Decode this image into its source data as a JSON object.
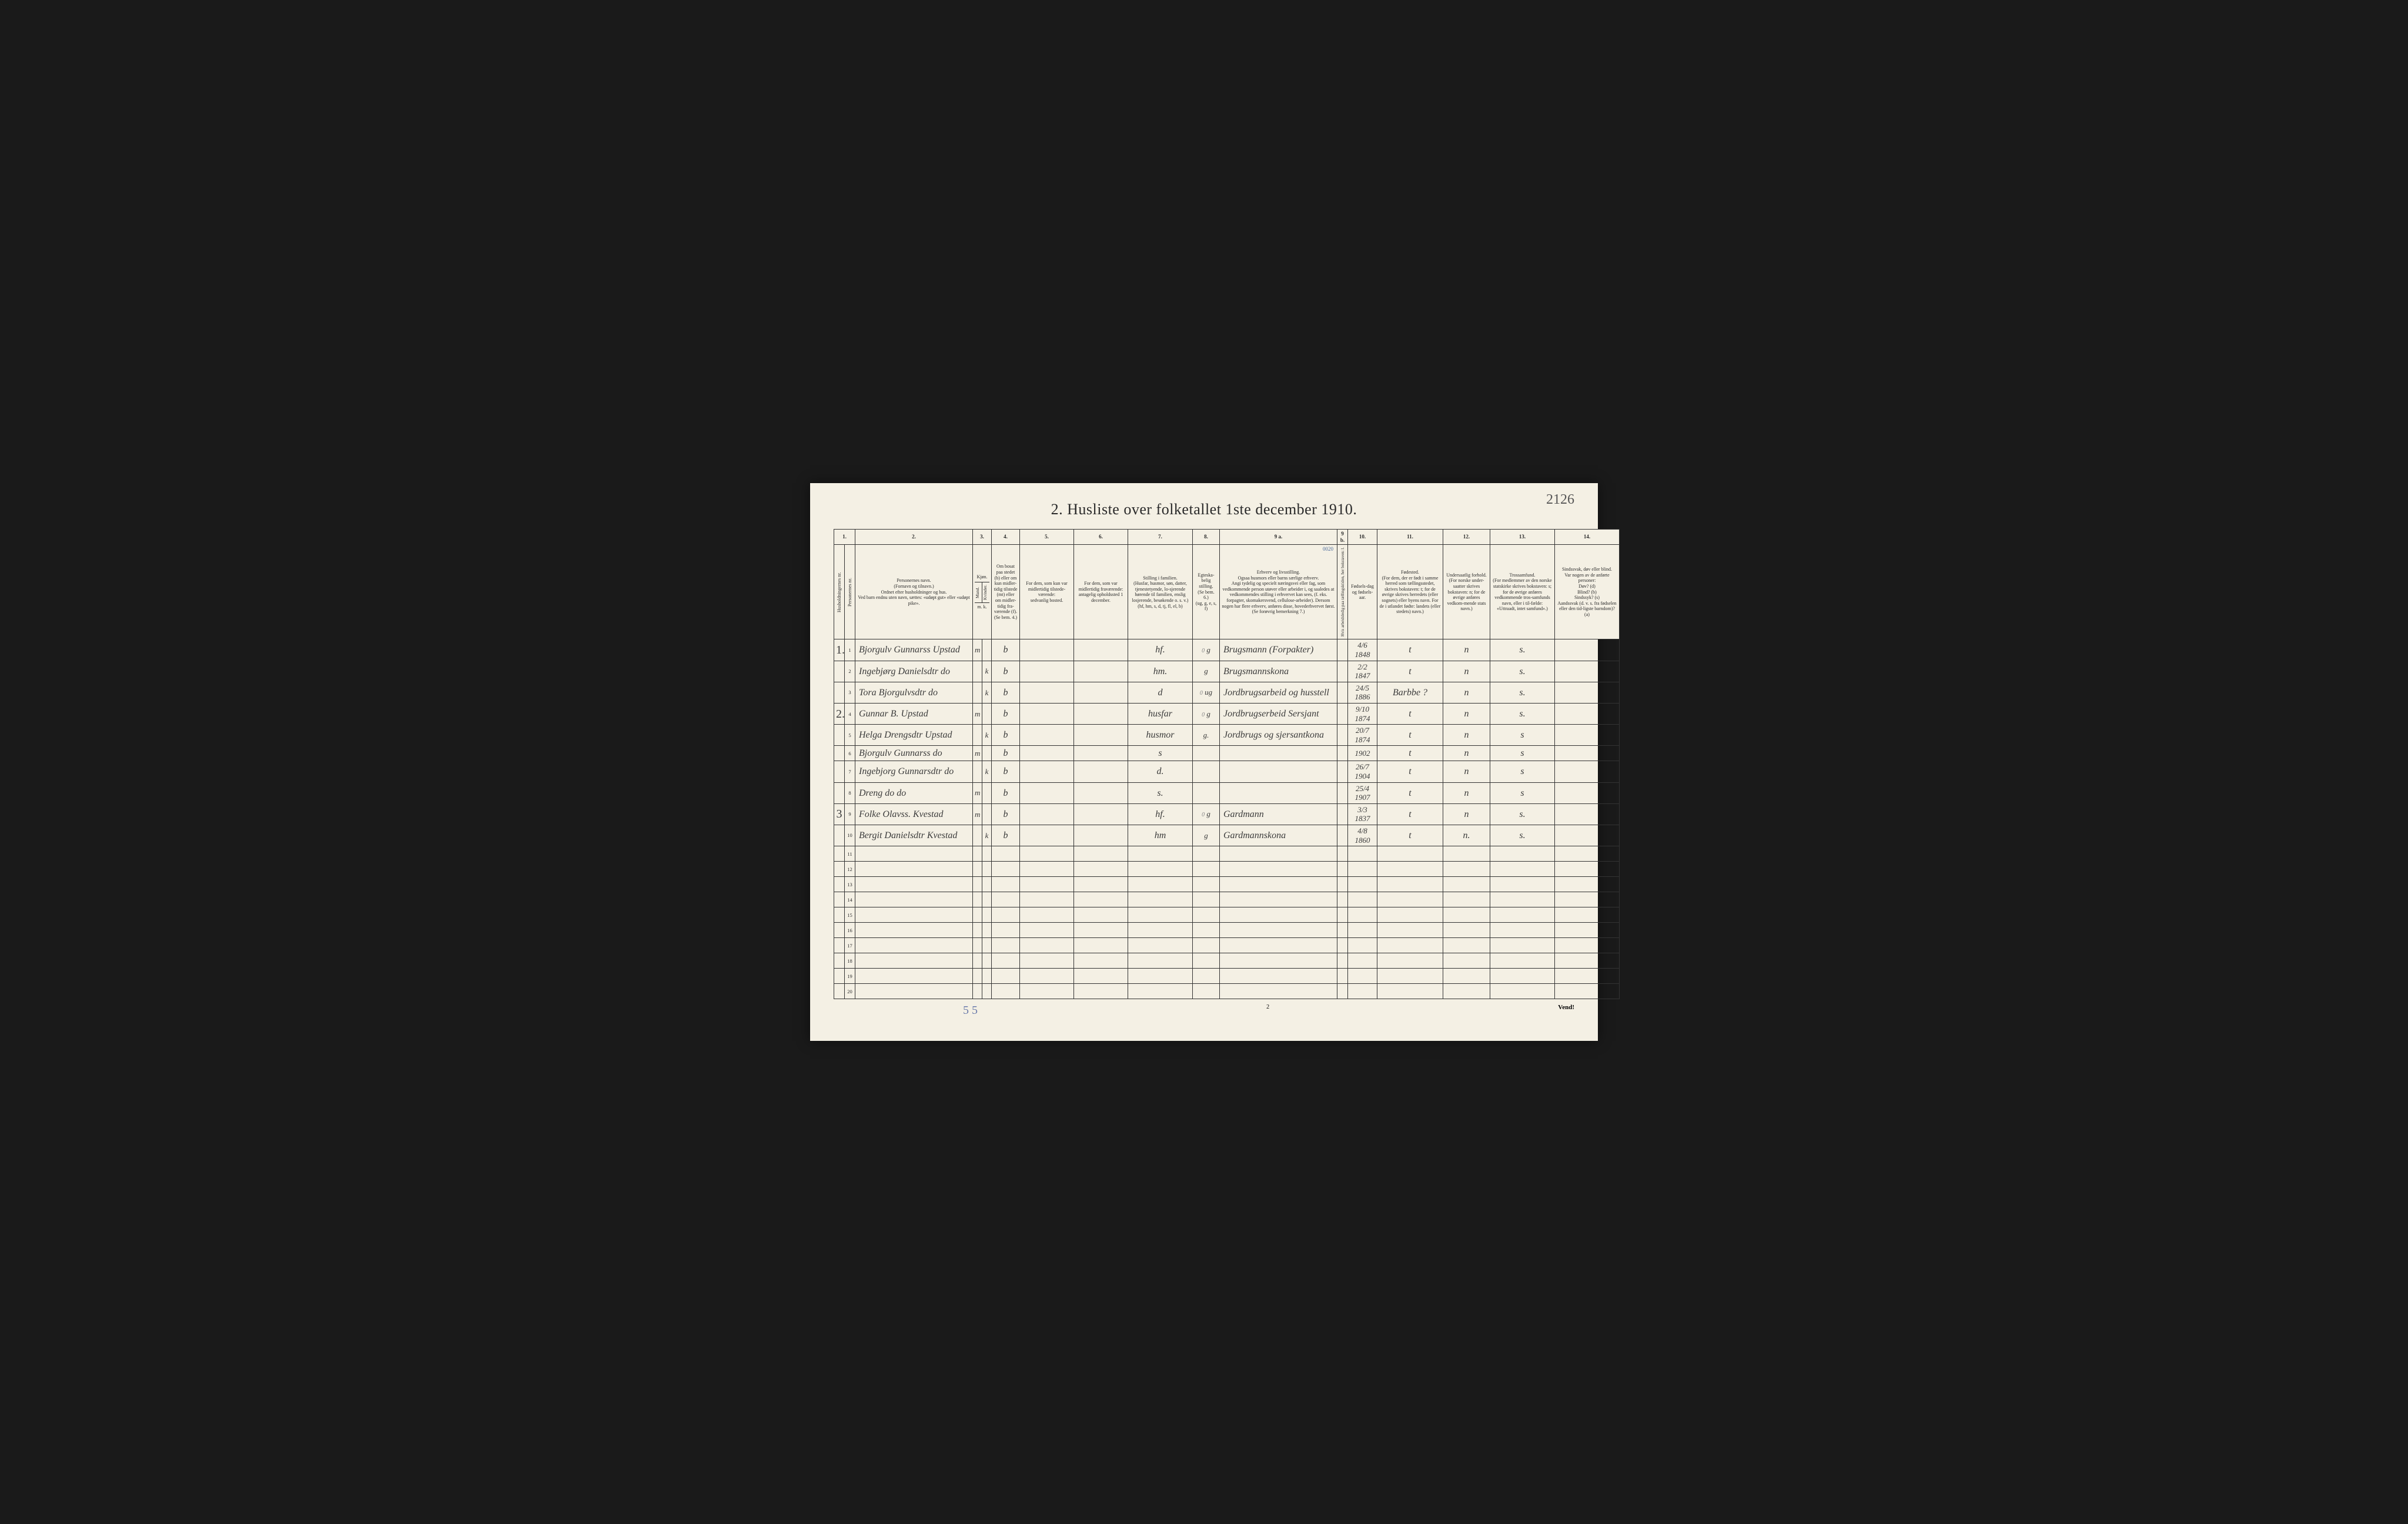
{
  "page_number_handwritten": "2126",
  "title": "2. Husliste over folketallet 1ste december 1910.",
  "column_numbers": [
    "1.",
    "2.",
    "3.",
    "4.",
    "5.",
    "6.",
    "7.",
    "8.",
    "9 a.",
    "9 b.",
    "10.",
    "11.",
    "12.",
    "13.",
    "14."
  ],
  "headers": {
    "c1a": "Husholdningernes nr.",
    "c1b": "Personernes nr.",
    "c2": "Personernes navn.\n(Fornavn og tilnavn.)\nOrdnet efter husholdninger og hus.\nVed barn endnu uten navn, sættes: «udøpt gut» eller «udøpt pike».",
    "c3": "Kjøn.",
    "c3a": "Mand.",
    "c3b": "Kvinder.",
    "c3sub": "m. k.",
    "c4": "Om bosat paa stedet (b) eller om kun midler-tidig tilstede (mt) eller om midler-tidig fra-værende (f). (Se bem. 4.)",
    "c5": "For dem, som kun var midlertidig tilstede-værende:\nsedvanlig bosted.",
    "c6": "For dem, som var midlertidig fraværende:\nantagelig opholdssted 1 december.",
    "c7": "Stilling i familien.\n(Husfar, husmor, søn, datter, tjenestetyende, lo-sjerende hørende til familien, enslig losjerende, besøkende o. s. v.)\n(hf, hm, s, d, tj, fl, el, b)",
    "c8": "Egteska-belig stilling.\n(Se bem. 6.)\n(ug, g, e, s, f)",
    "c9a": "Erhverv og livsstilling.\nOgsaa husmors eller barns særlige erhverv.\nAngi tydelig og specielt næringsvei eller fag, som vedkommende person utøver eller arbeider i, og saaledes at vedkommendes stilling i erhvervet kan sees, (f. eks. forpagter, skomakersvend, cellulose-arbeider). Dersom nogen har flere erhverv, anføres disse, hovederhvervet først.\n(Se forøvrig bemerkning 7.)",
    "c9b": "Hvis arbeidsledig paa tællingsktiden, her bokstaven: l.",
    "c10": "Fødsels-dag og fødsels-aar.",
    "c11": "Fødested.\n(For dem, der er født i samme herred som tællingsstedet, skrives bokstaven: t; for de øvrige skrives herredets (eller sognets) eller byens navn. For de i utlandet fødte: landets (eller stedets) navn.)",
    "c12": "Undersaatlig forhold.\n(For norske under-saatter skrives bokstaven: n; for de øvrige anføres vedkom-mende stats navn.)",
    "c13": "Trossamfund.\n(For medlemmer av den norske statskirke skrives bokstaven: s; for de øvrige anføres vedkommende tros-samfunds navn, eller i til-fælde: «Uttraadt, intet samfund».)",
    "c14": "Sindssvak, døv eller blind.\nVar nogen av de anførte personer:\nDøv? (d)\nBlind? (b)\nSindssyk? (s)\nAandssvak (d. v. s. fra fødselen eller den tid-ligste barndom)? (a)"
  },
  "overwrite_note": "0020",
  "rows": [
    {
      "hh": "1.",
      "pn": "1",
      "name": "Bjorgulv Gunnarss Upstad",
      "sex_m": "m",
      "sex_k": "",
      "res": "b",
      "c5": "",
      "c6": "",
      "c7": "hf.",
      "c8": "g",
      "c8pre": "0",
      "c9a": "Brugsmann (Forpakter)",
      "c10": "4/6 1848",
      "c11": "t",
      "c12": "n",
      "c13": "s.",
      "c14": ""
    },
    {
      "hh": "",
      "pn": "2",
      "name": "Ingebjørg Danielsdtr do",
      "sex_m": "",
      "sex_k": "k",
      "res": "b",
      "c5": "",
      "c6": "",
      "c7": "hm.",
      "c8": "g",
      "c8pre": "",
      "c9a": "Brugsmannskona",
      "c10": "2/2 1847",
      "c11": "t",
      "c12": "n",
      "c13": "s.",
      "c14": ""
    },
    {
      "hh": "",
      "pn": "3",
      "name": "Tora Bjorgulvsdtr do",
      "sex_m": "",
      "sex_k": "k",
      "res": "b",
      "c5": "",
      "c6": "",
      "c7": "d",
      "c8": "ug",
      "c8pre": "0",
      "c9a": "Jordbrugsarbeid og husstell",
      "c10": "24/5 1886",
      "c11": "Barbbe ?",
      "c12": "n",
      "c13": "s.",
      "c14": ""
    },
    {
      "hh": "2.",
      "pn": "4",
      "name": "Gunnar B. Upstad",
      "sex_m": "m",
      "sex_k": "",
      "res": "b",
      "c5": "",
      "c6": "",
      "c7": "husfar",
      "c8": "g",
      "c8pre": "0",
      "c9a": "Jordbrugserbeid Sersjant",
      "c10": "9/10 1874",
      "c11": "t",
      "c12": "n",
      "c13": "s.",
      "c14": ""
    },
    {
      "hh": "",
      "pn": "5",
      "name": "Helga Drengsdtr Upstad",
      "sex_m": "",
      "sex_k": "k",
      "res": "b",
      "c5": "",
      "c6": "",
      "c7": "husmor",
      "c8": "g.",
      "c8pre": "",
      "c9a": "Jordbrugs og sjersantkona",
      "c10": "20/7 1874",
      "c11": "t",
      "c12": "n",
      "c13": "s",
      "c14": ""
    },
    {
      "hh": "",
      "pn": "6",
      "name": "Bjorgulv Gunnarss do",
      "sex_m": "m",
      "sex_k": "",
      "res": "b",
      "c5": "",
      "c6": "",
      "c7": "s",
      "c8": "",
      "c8pre": "",
      "c9a": "",
      "c10": "1902",
      "c11": "t",
      "c12": "n",
      "c13": "s",
      "c14": ""
    },
    {
      "hh": "",
      "pn": "7",
      "name": "Ingebjorg Gunnarsdtr do",
      "sex_m": "",
      "sex_k": "k",
      "res": "b",
      "c5": "",
      "c6": "",
      "c7": "d.",
      "c8": "",
      "c8pre": "",
      "c9a": "",
      "c10": "26/7 1904",
      "c11": "t",
      "c12": "n",
      "c13": "s",
      "c14": ""
    },
    {
      "hh": "",
      "pn": "8",
      "name": "Dreng do do",
      "sex_m": "m",
      "sex_k": "",
      "res": "b",
      "c5": "",
      "c6": "",
      "c7": "s.",
      "c8": "",
      "c8pre": "",
      "c9a": "",
      "c10": "25/4 1907",
      "c11": "t",
      "c12": "n",
      "c13": "s",
      "c14": ""
    },
    {
      "hh": "3",
      "pn": "9",
      "name": "Folke Olavss. Kvestad",
      "sex_m": "m",
      "sex_k": "",
      "res": "b",
      "c5": "",
      "c6": "",
      "c7": "hf.",
      "c8": "g",
      "c8pre": "0",
      "c9a": "Gardmann",
      "c10": "3/3 1837",
      "c11": "t",
      "c12": "n",
      "c13": "s.",
      "c14": ""
    },
    {
      "hh": "",
      "pn": "10",
      "name": "Bergit Danielsdtr Kvestad",
      "sex_m": "",
      "sex_k": "k",
      "res": "b",
      "c5": "",
      "c6": "",
      "c7": "hm",
      "c8": "g",
      "c8pre": "",
      "c9a": "Gardmannskona",
      "c10": "4/8 1860",
      "c11": "t",
      "c12": "n.",
      "c13": "s.",
      "c14": ""
    }
  ],
  "empty_rows": [
    "11",
    "12",
    "13",
    "14",
    "15",
    "16",
    "17",
    "18",
    "19",
    "20"
  ],
  "footer_left": "5 5",
  "footer_center": "2",
  "footer_right": "Vend!",
  "col_widths": {
    "c1a": "18px",
    "c1b": "18px",
    "c2": "200px",
    "c3a": "16px",
    "c3b": "16px",
    "c4": "48px",
    "c5": "92px",
    "c6": "92px",
    "c7": "110px",
    "c8": "46px",
    "c9a": "200px",
    "c9b": "18px",
    "c10": "50px",
    "c11": "112px",
    "c12": "80px",
    "c13": "110px",
    "c14": "110px"
  },
  "colors": {
    "page_bg": "#f4f0e4",
    "border": "#333333",
    "text": "#2a2a2a",
    "handwriting": "#3a3a3a",
    "blue_pencil": "#6a7aaa"
  }
}
